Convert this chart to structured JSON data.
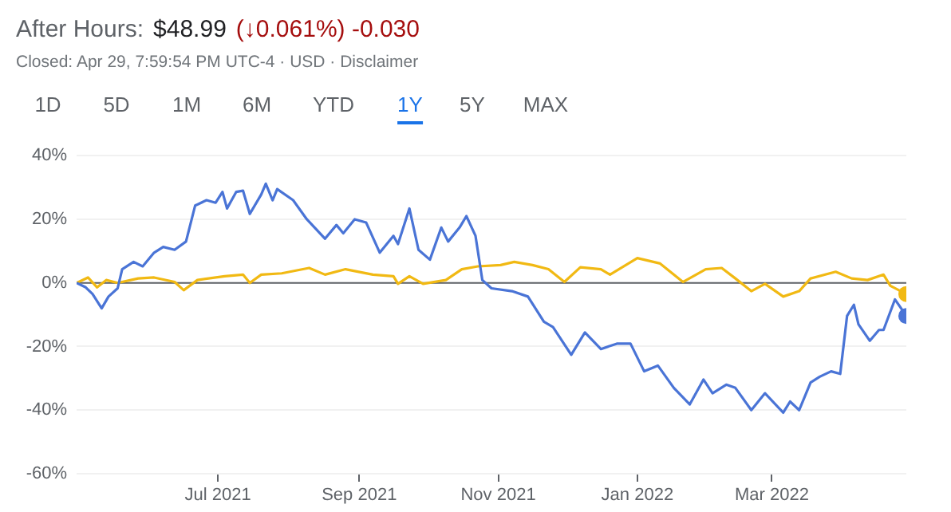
{
  "chart_data": {
    "type": "line",
    "annotations": [
      "After Hours:",
      "$48.99",
      "(↓0.061%) -0.030",
      "Closed: Apr 29, 7:59:54 PM UTC-4 · USD · Disclaimer",
      "1D",
      "5D",
      "1M",
      "6M",
      "YTD",
      "1Y",
      "5Y",
      "MAX"
    ],
    "xlim": [
      "2021-04-30",
      "2022-04-29"
    ],
    "xticks": [
      {
        "value": "2021-07-01",
        "label": "Jul 2021"
      },
      {
        "value": "2021-09-01",
        "label": "Sep 2021"
      },
      {
        "value": "2021-11-01",
        "label": "Nov 2021"
      },
      {
        "value": "2022-01-01",
        "label": "Jan 2022"
      },
      {
        "value": "2022-03-01",
        "label": "Mar 2022"
      }
    ],
    "ylim": [
      -60,
      40
    ],
    "yticks": [
      {
        "value": -60,
        "label": "-60%"
      },
      {
        "value": -40,
        "label": "-40%"
      },
      {
        "value": -20,
        "label": "-20%"
      },
      {
        "value": 0,
        "label": "0%"
      },
      {
        "value": 20,
        "label": "20%"
      },
      {
        "value": 40,
        "label": "40%"
      }
    ],
    "grid": "y",
    "legend": false,
    "marker": "none",
    "line_style": "solid",
    "ref_lines": [
      {
        "axis": "y",
        "value": 0,
        "color": "#5f6368"
      }
    ],
    "series": [
      {
        "color": "#4a74d6",
        "x": [
          "2021-04-30",
          "2021-05-04",
          "2021-05-07",
          "2021-05-11",
          "2021-05-14",
          "2021-05-18",
          "2021-05-20",
          "2021-05-25",
          "2021-05-29",
          "2021-06-03",
          "2021-06-07",
          "2021-06-12",
          "2021-06-17",
          "2021-06-21",
          "2021-06-26",
          "2021-06-30",
          "2021-07-03",
          "2021-07-05",
          "2021-07-09",
          "2021-07-12",
          "2021-07-15",
          "2021-07-20",
          "2021-07-22",
          "2021-07-25",
          "2021-07-27",
          "2021-08-03",
          "2021-08-09",
          "2021-08-17",
          "2021-08-22",
          "2021-08-25",
          "2021-08-30",
          "2021-09-04",
          "2021-09-10",
          "2021-09-16",
          "2021-09-18",
          "2021-09-23",
          "2021-09-27",
          "2021-10-02",
          "2021-10-07",
          "2021-10-10",
          "2021-10-15",
          "2021-10-18",
          "2021-10-22",
          "2021-10-25",
          "2021-10-29",
          "2021-11-07",
          "2021-11-14",
          "2021-11-21",
          "2021-11-25",
          "2021-12-03",
          "2021-12-09",
          "2021-12-16",
          "2021-12-23",
          "2021-12-29",
          "2022-01-04",
          "2022-01-10",
          "2022-01-17",
          "2022-01-24",
          "2022-01-30",
          "2022-02-03",
          "2022-02-09",
          "2022-02-13",
          "2022-02-20",
          "2022-02-26",
          "2022-03-06",
          "2022-03-09",
          "2022-03-13",
          "2022-03-18",
          "2022-03-22",
          "2022-03-27",
          "2022-03-31",
          "2022-04-03",
          "2022-04-06",
          "2022-04-08",
          "2022-04-13",
          "2022-04-17",
          "2022-04-19",
          "2022-04-24",
          "2022-04-29"
        ],
        "values": [
          0,
          -1.4,
          -3.5,
          -8,
          -4.3,
          -1.7,
          4.3,
          6.6,
          5.2,
          9.5,
          11.3,
          10.4,
          13,
          24.3,
          26,
          25.2,
          28.6,
          23.4,
          28.6,
          29,
          21.7,
          27.8,
          31.2,
          26,
          29.5,
          26,
          20,
          13.9,
          18.2,
          15.6,
          20,
          19,
          9.5,
          14.8,
          12.2,
          23.4,
          10.4,
          7.3,
          17.4,
          13,
          17.4,
          21,
          14.8,
          0.9,
          -1.7,
          -2.6,
          -4.3,
          -12.2,
          -13.9,
          -22.6,
          -15.6,
          -20.8,
          -19.1,
          -19.1,
          -27.8,
          -26,
          -33,
          -38.2,
          -30.4,
          -34.7,
          -32,
          -33,
          -40,
          -34.7,
          -40.8,
          -37.3,
          -40,
          -31.3,
          -29.5,
          -27.8,
          -28.6,
          -10.4,
          -6.9,
          -13,
          -18.2,
          -14.8,
          -14.8,
          -5.2,
          -10.4
        ]
      },
      {
        "color": "#f1b913",
        "x": [
          "2021-04-30",
          "2021-05-05",
          "2021-05-09",
          "2021-05-13",
          "2021-05-18",
          "2021-05-27",
          "2021-06-03",
          "2021-06-12",
          "2021-06-16",
          "2021-06-22",
          "2021-07-04",
          "2021-07-12",
          "2021-07-15",
          "2021-07-20",
          "2021-07-29",
          "2021-08-10",
          "2021-08-17",
          "2021-08-26",
          "2021-09-07",
          "2021-09-16",
          "2021-09-18",
          "2021-09-23",
          "2021-09-29",
          "2021-10-09",
          "2021-10-16",
          "2021-10-23",
          "2021-11-02",
          "2021-11-08",
          "2021-11-16",
          "2021-11-23",
          "2021-11-30",
          "2021-12-07",
          "2021-12-16",
          "2021-12-20",
          "2022-01-01",
          "2022-01-11",
          "2022-01-21",
          "2022-01-31",
          "2022-02-07",
          "2022-02-13",
          "2022-02-20",
          "2022-02-26",
          "2022-03-06",
          "2022-03-13",
          "2022-03-18",
          "2022-03-29",
          "2022-04-05",
          "2022-04-12",
          "2022-04-19",
          "2022-04-22",
          "2022-04-29"
        ],
        "values": [
          0,
          1.7,
          -1.4,
          0.9,
          0,
          1.4,
          1.7,
          0.3,
          -2.3,
          0.9,
          2.1,
          2.6,
          0,
          2.6,
          3,
          4.7,
          2.6,
          4.3,
          2.6,
          2.1,
          -0.3,
          2.1,
          -0.3,
          0.9,
          4.3,
          5.2,
          5.6,
          6.6,
          5.6,
          4.3,
          0.3,
          4.9,
          4.3,
          2.6,
          7.8,
          6.1,
          0.3,
          4.3,
          4.7,
          1.4,
          -2.6,
          -0.3,
          -4.3,
          -2.6,
          1.4,
          3.5,
          1.4,
          0.9,
          2.6,
          -0.9,
          -3.5
        ]
      }
    ]
  }
}
